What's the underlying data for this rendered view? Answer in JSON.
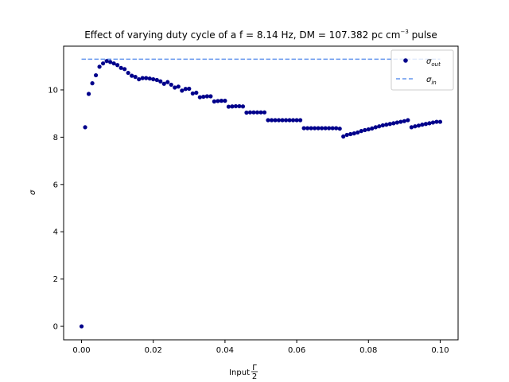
{
  "chart_data": {
    "type": "scatter",
    "title": "Effect of varying duty cycle of a f = 8.14 Hz, DM = 107.382 pc cm",
    "title_sup": "−3",
    "title_tail": " pulse",
    "xlabel": "Input",
    "xlabel_frac_num": "Γ",
    "xlabel_frac_den": "2",
    "ylabel": "σ",
    "xlim": [
      -0.005,
      0.105
    ],
    "ylim": [
      -0.57,
      11.85
    ],
    "xticks": [
      0.0,
      0.02,
      0.04,
      0.06,
      0.08,
      0.1
    ],
    "xtick_labels": [
      "0.00",
      "0.02",
      "0.04",
      "0.06",
      "0.08",
      "0.10"
    ],
    "yticks": [
      0,
      2,
      4,
      6,
      8,
      10
    ],
    "ytick_labels": [
      "0",
      "2",
      "4",
      "6",
      "8",
      "10"
    ],
    "grid": false,
    "legend_position": "top-right",
    "series": [
      {
        "name": "σ",
        "name_sub": "out",
        "style": "points",
        "color": "#00008b",
        "x": [
          0.0,
          0.001,
          0.002,
          0.003,
          0.004,
          0.005,
          0.006,
          0.007,
          0.008,
          0.009,
          0.01,
          0.011,
          0.012,
          0.013,
          0.014,
          0.015,
          0.016,
          0.017,
          0.018,
          0.019,
          0.02,
          0.021,
          0.022,
          0.023,
          0.024,
          0.025,
          0.026,
          0.027,
          0.028,
          0.029,
          0.03,
          0.031,
          0.032,
          0.033,
          0.034,
          0.035,
          0.036,
          0.037,
          0.038,
          0.039,
          0.04,
          0.041,
          0.042,
          0.043,
          0.044,
          0.045,
          0.046,
          0.047,
          0.048,
          0.049,
          0.05,
          0.051,
          0.052,
          0.053,
          0.054,
          0.055,
          0.056,
          0.057,
          0.058,
          0.059,
          0.06,
          0.061,
          0.062,
          0.063,
          0.064,
          0.065,
          0.066,
          0.067,
          0.068,
          0.069,
          0.07,
          0.071,
          0.072,
          0.073,
          0.074,
          0.075,
          0.076,
          0.077,
          0.078,
          0.079,
          0.08,
          0.081,
          0.082,
          0.083,
          0.084,
          0.085,
          0.086,
          0.087,
          0.088,
          0.089,
          0.09,
          0.091,
          0.092,
          0.093,
          0.094,
          0.095,
          0.096,
          0.097,
          0.098,
          0.099,
          0.1
        ],
        "y": [
          0.0,
          8.42,
          9.83,
          10.28,
          10.62,
          10.98,
          11.12,
          11.22,
          11.18,
          11.12,
          11.05,
          10.93,
          10.88,
          10.72,
          10.6,
          10.55,
          10.45,
          10.5,
          10.5,
          10.48,
          10.45,
          10.42,
          10.36,
          10.26,
          10.33,
          10.22,
          10.1,
          10.14,
          9.97,
          10.04,
          10.05,
          9.85,
          9.88,
          9.69,
          9.71,
          9.73,
          9.73,
          9.51,
          9.53,
          9.54,
          9.54,
          9.29,
          9.3,
          9.31,
          9.31,
          9.3,
          9.04,
          9.05,
          9.05,
          9.05,
          9.05,
          9.05,
          8.72,
          8.72,
          8.72,
          8.72,
          8.72,
          8.72,
          8.72,
          8.72,
          8.72,
          8.72,
          8.38,
          8.38,
          8.38,
          8.38,
          8.38,
          8.38,
          8.38,
          8.38,
          8.38,
          8.38,
          8.36,
          8.03,
          8.1,
          8.13,
          8.16,
          8.2,
          8.26,
          8.3,
          8.33,
          8.37,
          8.42,
          8.46,
          8.5,
          8.53,
          8.56,
          8.59,
          8.62,
          8.65,
          8.68,
          8.72,
          8.42,
          8.46,
          8.49,
          8.53,
          8.56,
          8.59,
          8.62,
          8.65,
          8.65
        ]
      },
      {
        "name": "σ",
        "name_sub": "in",
        "style": "dashed-line",
        "color": "#6495ed",
        "x": [
          0.0,
          0.1
        ],
        "y": [
          11.3,
          11.3
        ]
      }
    ]
  }
}
